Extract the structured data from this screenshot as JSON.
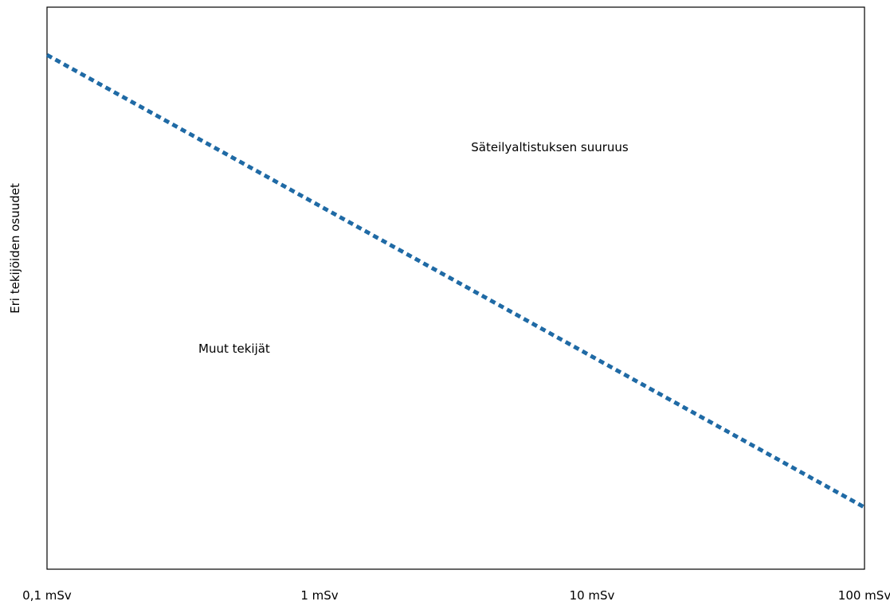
{
  "chart_data": {
    "type": "line",
    "title": "",
    "xlabel": "",
    "ylabel": "Eri tekijöiden osuudet",
    "x_scale": "log",
    "xlim": [
      0.1,
      100
    ],
    "ylim": [
      0,
      1
    ],
    "x_tick_values": [
      0.1,
      1,
      10,
      100
    ],
    "x_tick_labels": [
      "0,1 mSv",
      "1 mSv",
      "10 mSv",
      "100 mSv"
    ],
    "series": [
      {
        "x": [
          0.1,
          100
        ],
        "y": [
          0.915,
          0.11
        ],
        "color": "#1f6aa5",
        "style": "dotted"
      }
    ],
    "annotations": [
      "Säteilyaltistuksen suuruus",
      "Muut tekijät"
    ],
    "grid": false
  }
}
